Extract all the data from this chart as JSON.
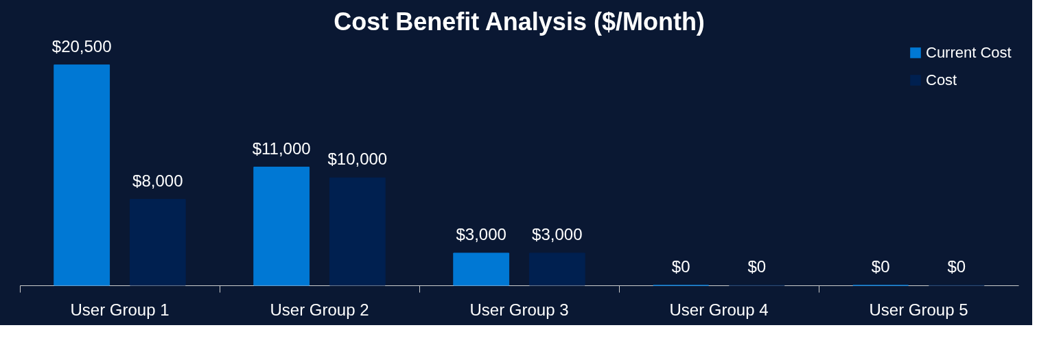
{
  "chart_data": {
    "type": "bar",
    "title": "Cost Benefit Analysis ($/Month)",
    "categories": [
      "User Group 1",
      "User Group 2",
      "User Group 3",
      "User Group 4",
      "User Group 5"
    ],
    "series": [
      {
        "name": "Current Cost",
        "color": "#0078d4",
        "values": [
          20500,
          11000,
          3000,
          0,
          0
        ],
        "value_labels": [
          "$20,500",
          "$11,000",
          "$3,000",
          "$0",
          "$0"
        ]
      },
      {
        "name": "Cost",
        "color": "#002050",
        "values": [
          8000,
          10000,
          3000,
          0,
          0
        ],
        "value_labels": [
          "$8,000",
          "$10,000",
          "$3,000",
          "$0",
          "$0"
        ]
      }
    ],
    "legend": "top right",
    "grid": false
  }
}
